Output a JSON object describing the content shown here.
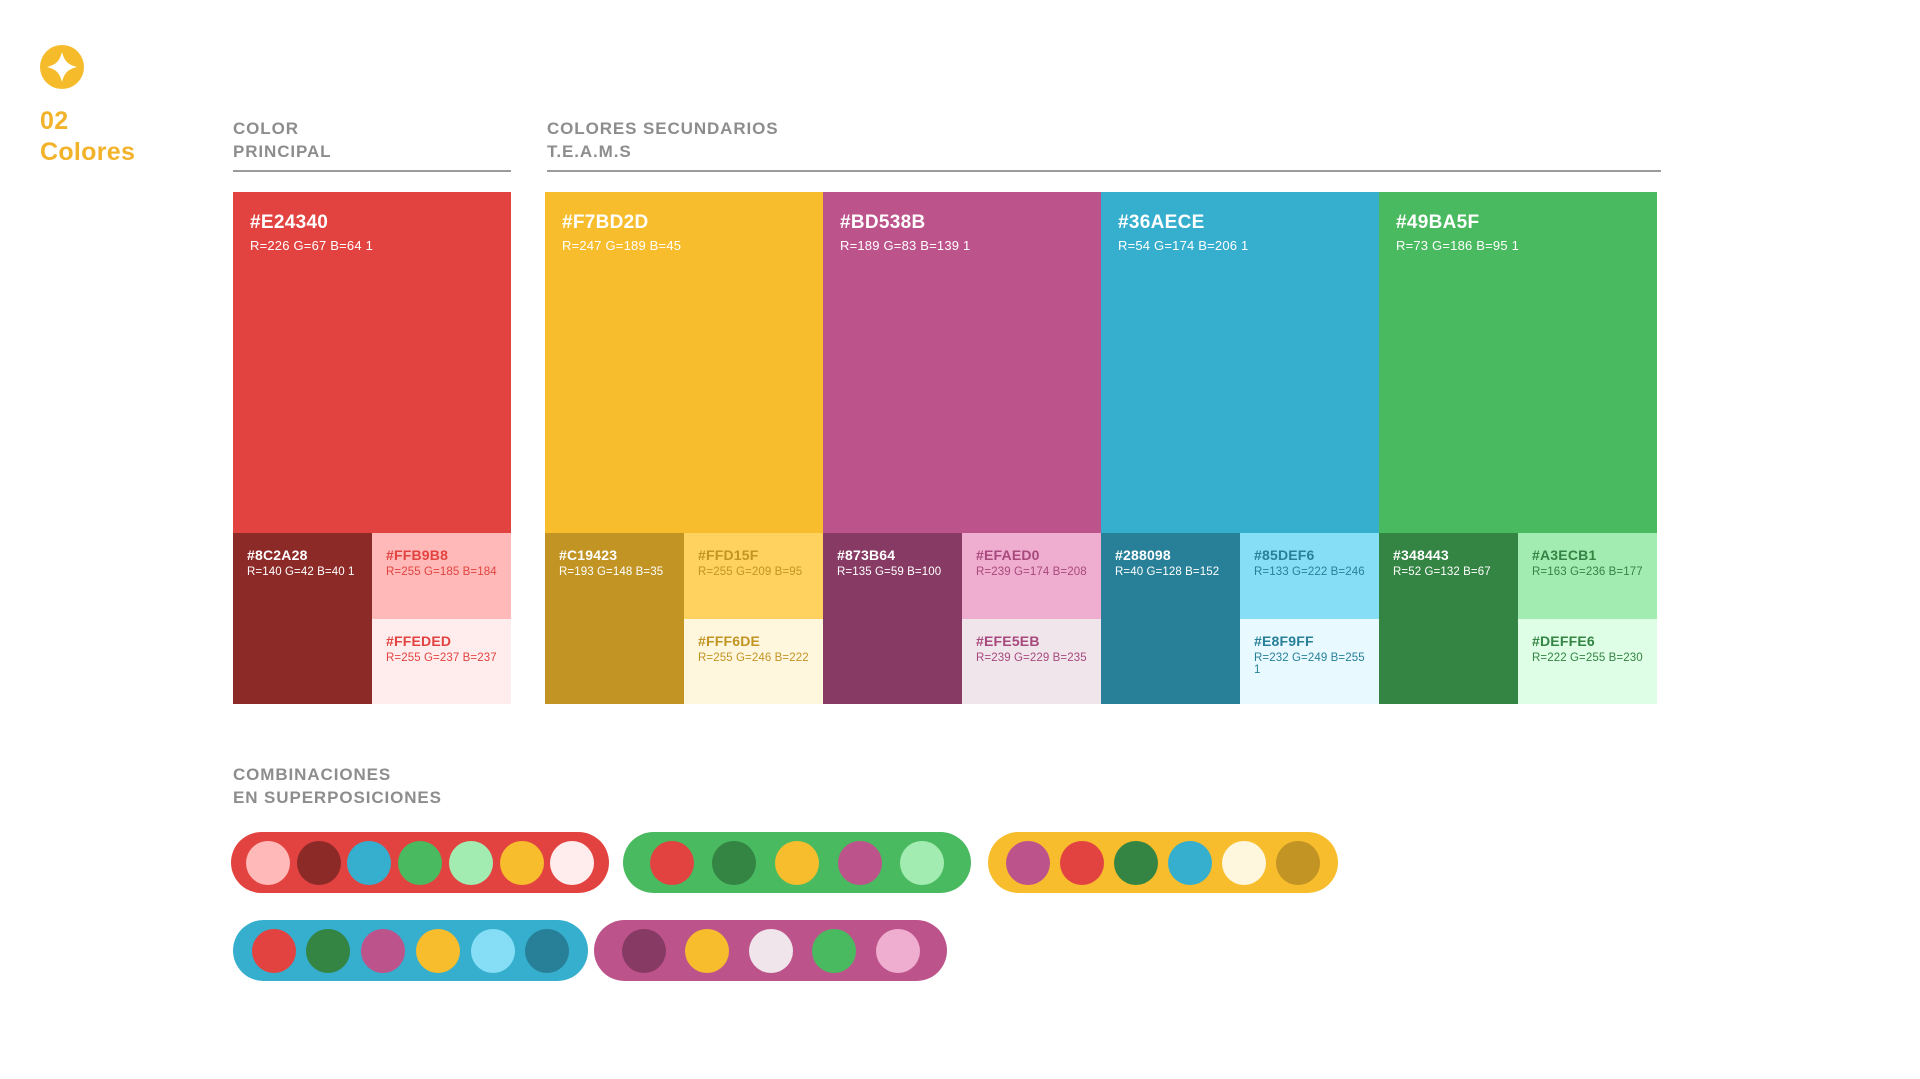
{
  "brand": {
    "number": "02",
    "title": "Colores",
    "accent": "#F2B32B",
    "logo_color": "#F5BB2B"
  },
  "headers": {
    "principal": {
      "line1": "COLOR",
      "line2": "PRINCIPAL"
    },
    "secundarios": {
      "line1": "COLORES SECUNDARIOS",
      "line2": "T.E.A.M.S"
    },
    "combinaciones": {
      "line1": "COMBINACIONES",
      "line2": "EN SUPERPOSICIONES"
    }
  },
  "palettes": [
    {
      "group": "principal",
      "main": {
        "hex": "#E24340",
        "rgb": "R=226 G=67 B=64 1",
        "text": "#FFFFFF"
      },
      "dark": {
        "hex": "#8C2A28",
        "rgb": "R=140 G=42 B=40 1",
        "text": "#FFFFFF"
      },
      "light": {
        "hex": "#FFB9B8",
        "rgb": "R=255 G=185 B=184",
        "text": "#E24340"
      },
      "lighter": {
        "hex": "#FFEDED",
        "rgb": "R=255 G=237 B=237",
        "text": "#E24340"
      }
    },
    {
      "group": "secundarios",
      "main": {
        "hex": "#F7BD2D",
        "rgb": "R=247 G=189 B=45",
        "text": "#FFFFFF"
      },
      "dark": {
        "hex": "#C19423",
        "rgb": "R=193 G=148 B=35",
        "text": "#FFFFFF"
      },
      "light": {
        "hex": "#FFD15F",
        "rgb": "R=255 G=209 B=95",
        "text": "#C19423"
      },
      "lighter": {
        "hex": "#FFF6DE",
        "rgb": "R=255 G=246 B=222",
        "text": "#C19423"
      }
    },
    {
      "group": "secundarios",
      "main": {
        "hex": "#BD538B",
        "rgb": "R=189 G=83 B=139 1",
        "text": "#FFFFFF"
      },
      "dark": {
        "hex": "#873B64",
        "rgb": "R=135 G=59 B=100",
        "text": "#FFFFFF"
      },
      "light": {
        "hex": "#EFAED0",
        "rgb": "R=239 G=174 B=208",
        "text": "#A8497D"
      },
      "lighter": {
        "hex": "#EFE5EB",
        "rgb": "R=239 G=229 B=235",
        "text": "#A8497D"
      }
    },
    {
      "group": "secundarios",
      "main": {
        "hex": "#36AECE",
        "rgb": "R=54 G=174 B=206 1",
        "text": "#FFFFFF"
      },
      "dark": {
        "hex": "#288098",
        "rgb": "R=40 G=128 B=152",
        "text": "#FFFFFF"
      },
      "light": {
        "hex": "#85DEF6",
        "rgb": "R=133 G=222 B=246",
        "text": "#288098"
      },
      "lighter": {
        "hex": "#E8F9FF",
        "rgb": "R=232 G=249 B=255 1",
        "text": "#288098"
      }
    },
    {
      "group": "secundarios",
      "main": {
        "hex": "#49BA5F",
        "rgb": "R=73 G=186 B=95 1",
        "text": "#FFFFFF"
      },
      "dark": {
        "hex": "#348443",
        "rgb": "R=52 G=132 B=67",
        "text": "#FFFFFF"
      },
      "light": {
        "hex": "#A3ECB1",
        "rgb": "R=163 G=236 B=177",
        "text": "#348443"
      },
      "lighter": {
        "hex": "#DEFFE6",
        "rgb": "R=222 G=255 B=230",
        "text": "#348443"
      }
    }
  ],
  "combinations": [
    {
      "background": "#E24340",
      "dots": [
        "#FFB9B8",
        "#8C2A28",
        "#36AECE",
        "#49BA5F",
        "#A3ECB1",
        "#F7BD2D",
        "#FFEDED"
      ]
    },
    {
      "background": "#49BA5F",
      "dots": [
        "#E24340",
        "#348443",
        "#F7BD2D",
        "#BD538B",
        "#A3ECB1"
      ]
    },
    {
      "background": "#F7BD2D",
      "dots": [
        "#BD538B",
        "#E24340",
        "#348443",
        "#36AECE",
        "#FFF6DE",
        "#C19423"
      ]
    },
    {
      "background": "#36AECE",
      "dots": [
        "#E24340",
        "#348443",
        "#BD538B",
        "#F7BD2D",
        "#85DEF6",
        "#288098"
      ]
    },
    {
      "background": "#BD538B",
      "dots": [
        "#873B64",
        "#F7BD2D",
        "#EFE5EB",
        "#49BA5F",
        "#EFAED0"
      ]
    }
  ]
}
